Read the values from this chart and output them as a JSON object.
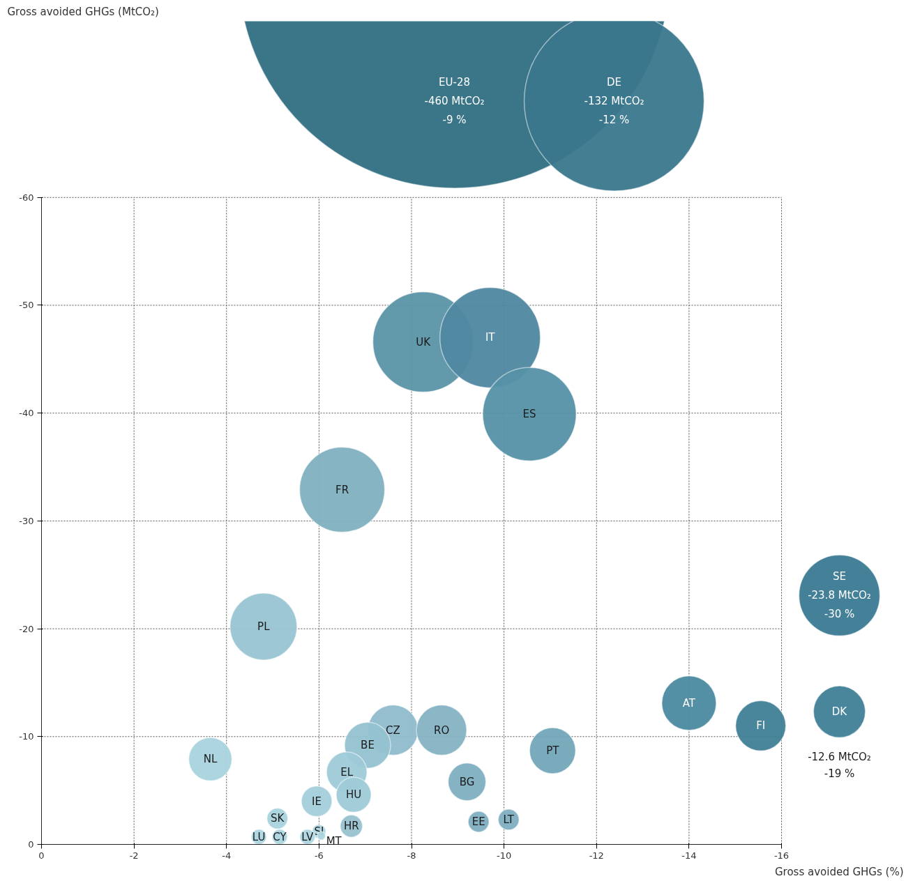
{
  "chart_data": [
    {
      "type": "other",
      "ylabel": "Gross avoided GHGs (MtCO₂)",
      "categories": [
        "EU-28",
        "DE"
      ],
      "values": [
        -460,
        -132
      ],
      "colors": [
        "#2f6e82",
        "#3a778d"
      ],
      "value_labels": [
        "-460 MtCO₂\n-9 %",
        "-132 MtCO₂\n-12 %"
      ]
    },
    {
      "type": "bubble",
      "xlabel": "Gross avoided GHGs (%)",
      "xlim": [
        0,
        -16
      ],
      "ylim": [
        0,
        -60
      ],
      "xticks": [
        0,
        -2,
        -4,
        -6,
        -8,
        -10,
        -12,
        -14,
        -16
      ],
      "yticks": [
        0,
        -10,
        -20,
        -30,
        -40,
        -50,
        -60
      ],
      "grid": true,
      "marker": "circle",
      "series": [
        {
          "name": "UK",
          "color": "#5a93a7",
          "x": [
            -8.25
          ],
          "values": [
            -46.6
          ],
          "sizes": [
            1
          ]
        },
        {
          "name": "IT",
          "color": "#4f88a0",
          "x": [
            -9.7
          ],
          "values": [
            -47.0
          ],
          "sizes": [
            1
          ]
        },
        {
          "name": "ES",
          "color": "#5591a6",
          "x": [
            -10.55
          ],
          "values": [
            -39.9
          ],
          "sizes": [
            0.866
          ]
        },
        {
          "name": "FR",
          "color": "#7fb0bf",
          "x": [
            -6.5
          ],
          "values": [
            -32.9
          ],
          "sizes": [
            0.718
          ]
        },
        {
          "name": "PL",
          "color": "#98c4d2",
          "x": [
            -4.8
          ],
          "values": [
            -20.2
          ],
          "sizes": [
            0.444
          ]
        },
        {
          "name": "NL",
          "color": "#a8d3de",
          "x": [
            -3.65
          ],
          "values": [
            -7.9
          ],
          "sizes": [
            0.185
          ]
        },
        {
          "name": "CZ",
          "color": "#8fbccb",
          "x": [
            -7.6
          ],
          "values": [
            -10.6
          ],
          "sizes": [
            0.25
          ]
        },
        {
          "name": "RO",
          "color": "#85b2c3",
          "x": [
            -8.65
          ],
          "values": [
            -10.6
          ],
          "sizes": [
            0.25
          ]
        },
        {
          "name": "BE",
          "color": "#94c2d0",
          "x": [
            -7.05
          ],
          "values": [
            -9.2
          ],
          "sizes": [
            0.21
          ]
        },
        {
          "name": "EL",
          "color": "#9ecad7",
          "x": [
            -6.6
          ],
          "values": [
            -6.7
          ],
          "sizes": [
            0.162
          ]
        },
        {
          "name": "HU",
          "color": "#9ecad7",
          "x": [
            -6.75
          ],
          "values": [
            -4.6
          ],
          "sizes": [
            0.121
          ]
        },
        {
          "name": "IE",
          "color": "#a4cfdb",
          "x": [
            -5.95
          ],
          "values": [
            -4.0
          ],
          "sizes": [
            0.093
          ]
        },
        {
          "name": "BG",
          "color": "#7eafc0",
          "x": [
            -9.2
          ],
          "values": [
            -5.8
          ],
          "sizes": [
            0.141
          ]
        },
        {
          "name": "PT",
          "color": "#73a6b8",
          "x": [
            -11.05
          ],
          "values": [
            -8.7
          ],
          "sizes": [
            0.21
          ]
        },
        {
          "name": "AT",
          "color": "#4a8aa0",
          "x": [
            -14.0
          ],
          "values": [
            -13.1
          ],
          "sizes": [
            0.293
          ]
        },
        {
          "name": "FI",
          "color": "#3f7f97",
          "x": [
            -15.55
          ],
          "values": [
            -11.0
          ],
          "sizes": [
            0.25
          ]
        },
        {
          "name": "EE",
          "color": "#7fafc0",
          "x": [
            -9.45
          ],
          "values": [
            -2.1
          ],
          "sizes": [
            0.043
          ]
        },
        {
          "name": "LT",
          "color": "#7fafc0",
          "x": [
            -10.1
          ],
          "values": [
            -2.3
          ],
          "sizes": [
            0.043
          ]
        },
        {
          "name": "HR",
          "color": "#97c2cf",
          "x": [
            -6.7
          ],
          "values": [
            -1.7
          ],
          "sizes": [
            0.049
          ]
        },
        {
          "name": "SK",
          "color": "#a8d3de",
          "x": [
            -5.1
          ],
          "values": [
            -2.4
          ],
          "sizes": [
            0.043
          ]
        },
        {
          "name": "SI",
          "color": "#add6e0",
          "x": [
            -6.0
          ],
          "values": [
            -1.2
          ],
          "sizes": [
            0.019
          ]
        },
        {
          "name": "MT",
          "color": "#add6e0",
          "x": [
            -6.05
          ],
          "values": [
            -0.8
          ],
          "sizes": [
            0.007
          ]
        },
        {
          "name": "LU",
          "color": "#add6e0",
          "x": [
            -4.7
          ],
          "values": [
            -0.7
          ],
          "sizes": [
            0.023
          ]
        },
        {
          "name": "CY",
          "color": "#add6e0",
          "x": [
            -5.15
          ],
          "values": [
            -0.7
          ],
          "sizes": [
            0.023
          ]
        },
        {
          "name": "LV",
          "color": "#add6e0",
          "x": [
            -5.75
          ],
          "values": [
            -0.7
          ],
          "sizes": [
            0.023
          ]
        }
      ]
    },
    {
      "type": "other",
      "categories": [
        "SE",
        "DK"
      ],
      "values": [
        -23.8,
        -12.6
      ],
      "colors": [
        "#3a7a92",
        "#3f7f97"
      ],
      "value_labels": [
        "-23.8 MtCO₂\n-30 %",
        "-12.6 MtCO₂\n-19 %"
      ]
    }
  ]
}
